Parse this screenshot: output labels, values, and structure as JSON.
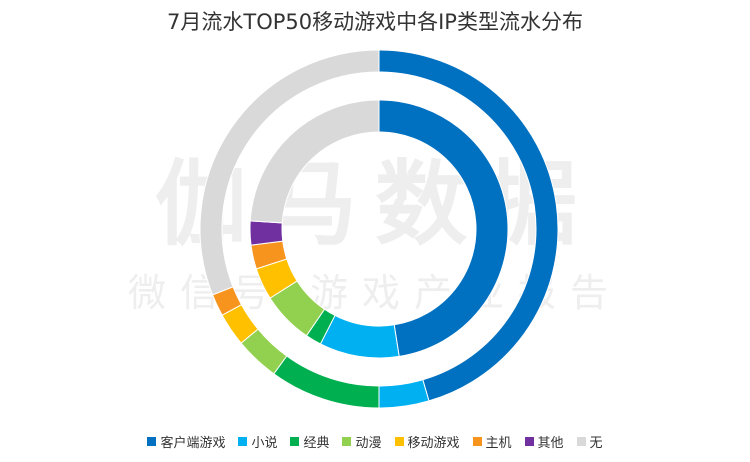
{
  "title": "7月流水TOP50移动游戏中各IP类型流水分布",
  "watermark": {
    "line1": "伽马数据",
    "line2": "微信号  游戏产业报告"
  },
  "chart_data": {
    "type": "donut",
    "title": "7月流水TOP50移动游戏中各IP类型流水分布",
    "categories": [
      "客户端游戏",
      "小说",
      "经典",
      "动漫",
      "移动游戏",
      "主机",
      "其他",
      "无"
    ],
    "colors": [
      "#0070C0",
      "#00B0F0",
      "#00B050",
      "#92D050",
      "#FFC000",
      "#F7941D",
      "#7030A0",
      "#D9D9D9"
    ],
    "series": [
      {
        "ring": "outer",
        "values": [
          45.5,
          4.5,
          10,
          4,
          3,
          2,
          0,
          31
        ]
      },
      {
        "ring": "inner",
        "values": [
          47.5,
          10,
          2,
          6.5,
          4,
          3,
          3,
          24
        ]
      }
    ],
    "legend_position": "bottom"
  }
}
